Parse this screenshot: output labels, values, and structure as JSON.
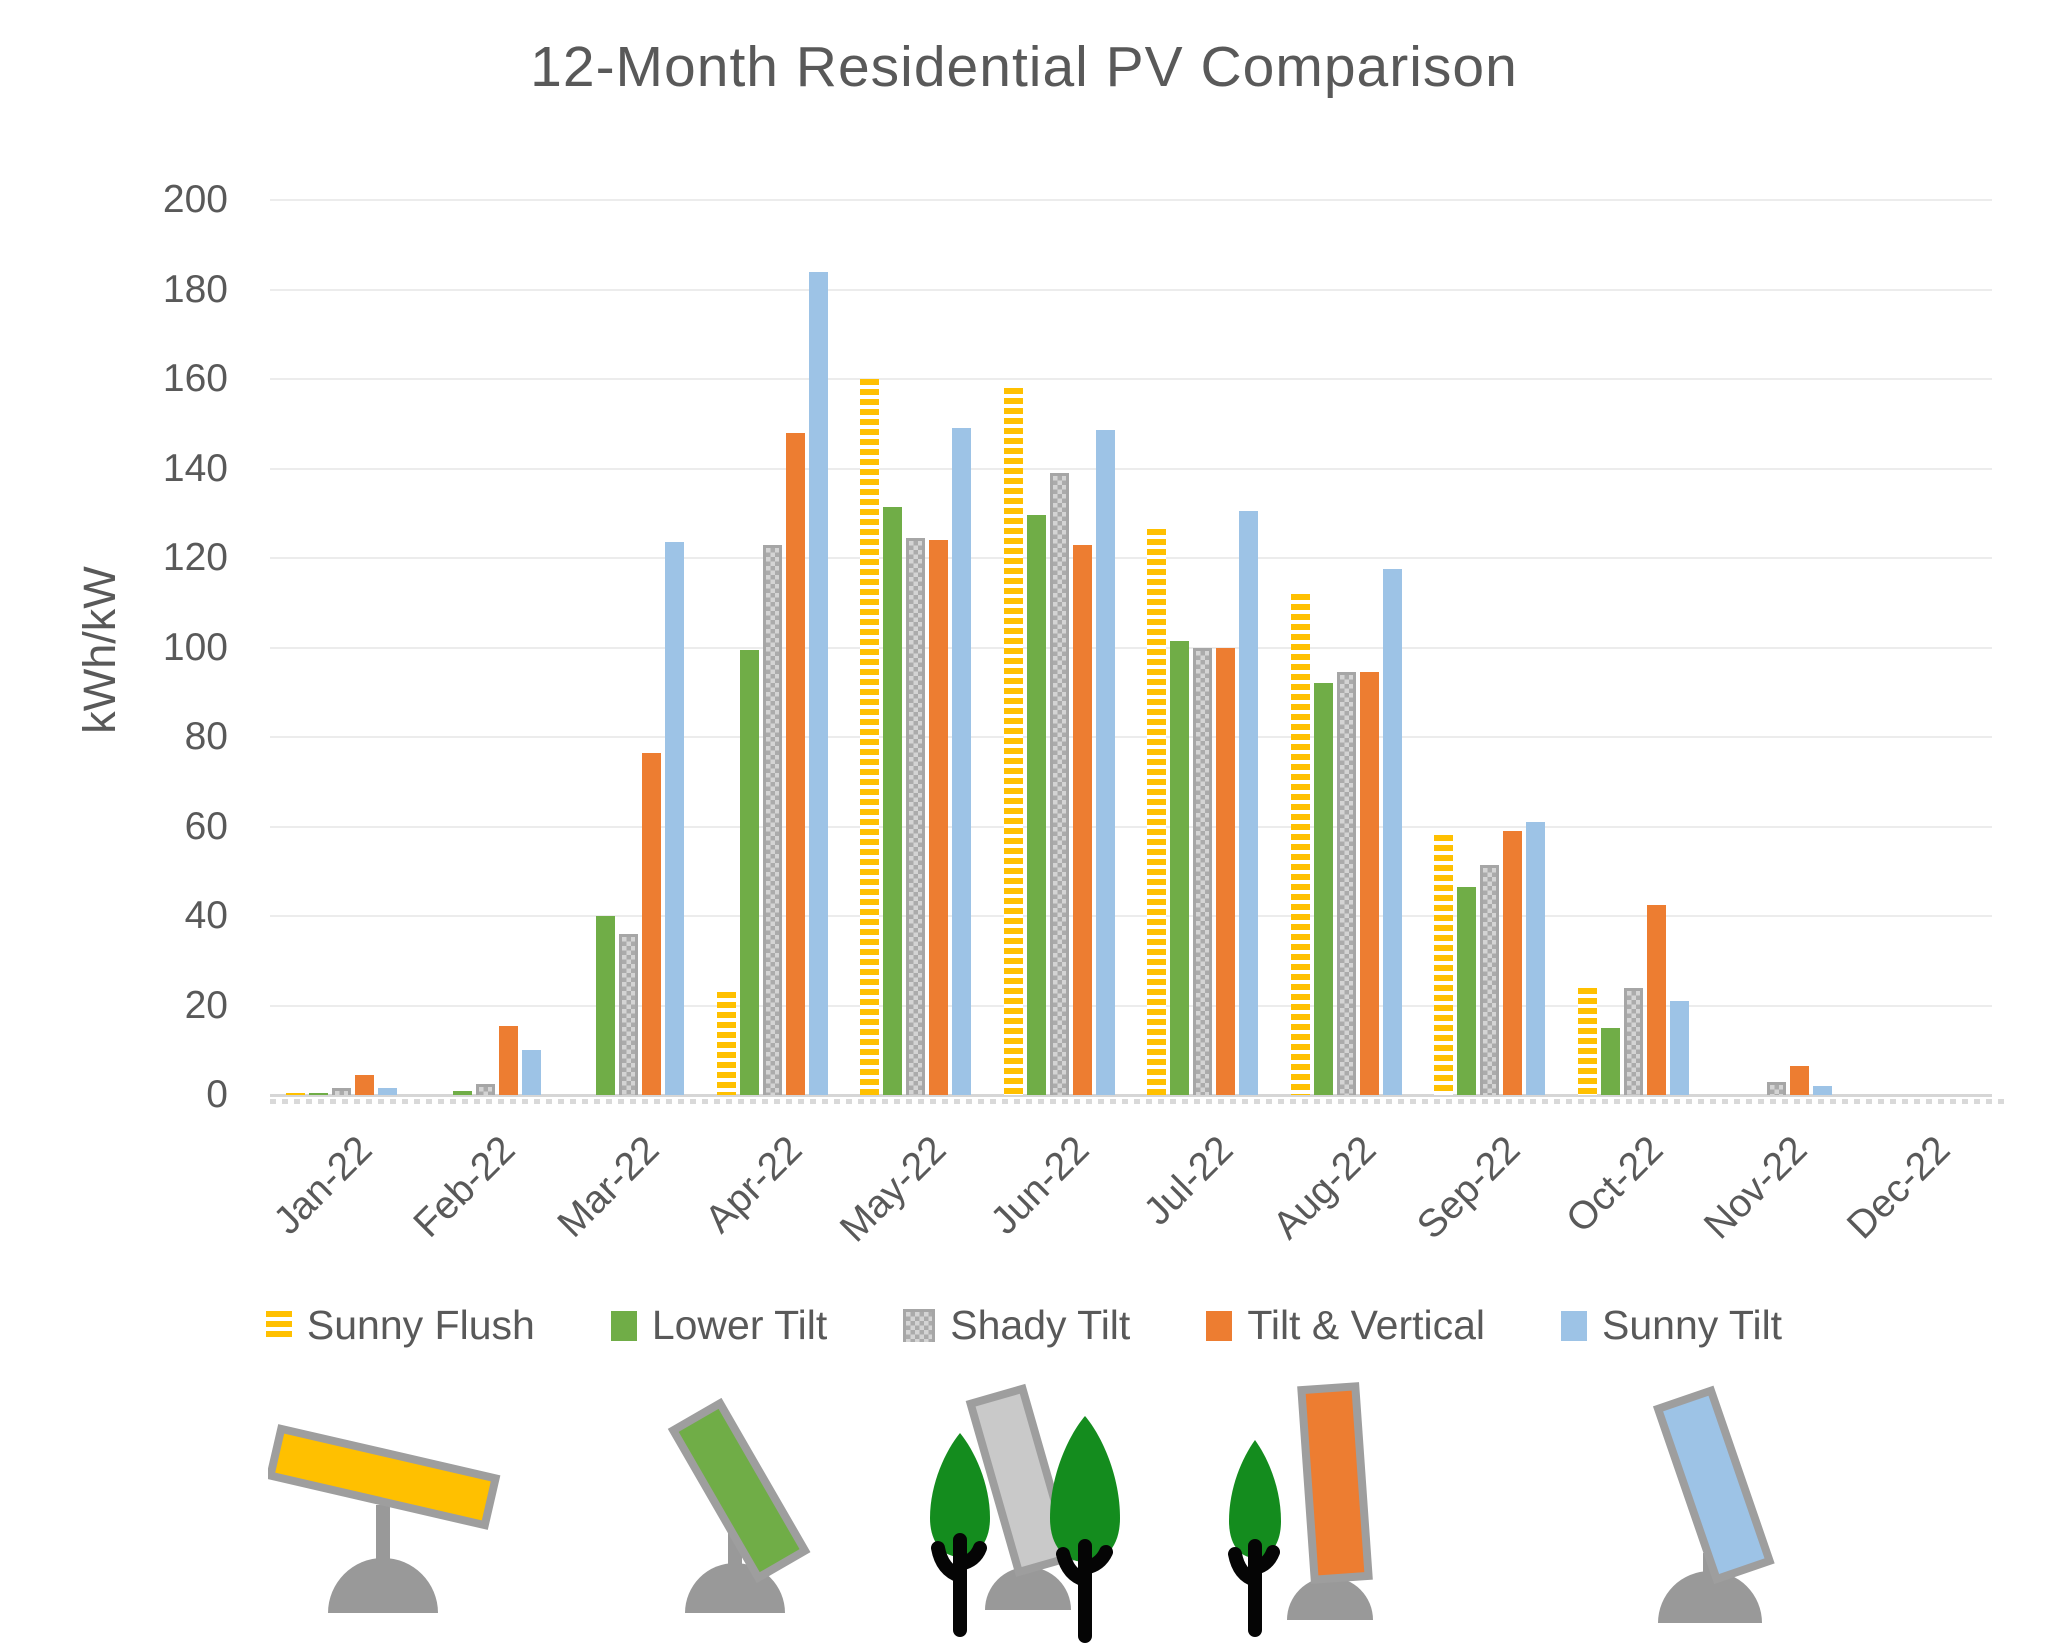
{
  "title": "12-Month Residential PV Comparison",
  "chart_data": {
    "type": "bar",
    "title": "12-Month Residential PV Comparison",
    "xlabel": "",
    "ylabel": "kWh/kW",
    "ylim": [
      0,
      200
    ],
    "ytick_step": 20,
    "yticks": [
      0,
      20,
      40,
      60,
      80,
      100,
      120,
      140,
      160,
      180,
      200
    ],
    "grid": true,
    "legend_position": "bottom",
    "categories": [
      "Jan-22",
      "Feb-22",
      "Mar-22",
      "Apr-22",
      "May-22",
      "Jun-22",
      "Jul-22",
      "Aug-22",
      "Sep-22",
      "Oct-22",
      "Nov-22",
      "Dec-22"
    ],
    "series": [
      {
        "name": "Sunny Flush",
        "color": "#FFC000",
        "pattern": "horizontal-stripes",
        "values": [
          0.5,
          0,
          0,
          23,
          160,
          158,
          126.5,
          112,
          58,
          24,
          0,
          0
        ]
      },
      {
        "name": "Lower Tilt",
        "color": "#70AD47",
        "pattern": "solid",
        "values": [
          0.5,
          1,
          40,
          99.5,
          131.5,
          129.5,
          101.5,
          92,
          46.5,
          15,
          0,
          0
        ]
      },
      {
        "name": "Shady Tilt",
        "color": "#A6A6A6",
        "pattern": "checker",
        "values": [
          1.5,
          2.5,
          36,
          123,
          124.5,
          139,
          100,
          94.5,
          51.5,
          24,
          3,
          0
        ]
      },
      {
        "name": "Tilt & Vertical",
        "color": "#ED7D31",
        "pattern": "solid",
        "values": [
          4.5,
          15.5,
          76.5,
          148,
          124,
          123,
          100,
          94.5,
          59,
          42.5,
          6.5,
          0
        ]
      },
      {
        "name": "Sunny Tilt",
        "color": "#9DC3E6",
        "pattern": "solid",
        "values": [
          1.5,
          10,
          123.5,
          184,
          149,
          148.5,
          130.5,
          117.5,
          61,
          21,
          2,
          0
        ]
      }
    ]
  },
  "icons": {
    "tree_color": "#148C1E",
    "pole_color": "#999999",
    "frame_color": "#9E9E9E",
    "items": [
      {
        "name": "sunny-flush-panel-icon",
        "panel_color": "#FFC000",
        "trees": 0
      },
      {
        "name": "lower-tilt-panel-icon",
        "panel_color": "#70AD47",
        "trees": 0
      },
      {
        "name": "shady-tilt-panel-icon",
        "panel_color": "#C9C9C9",
        "trees": 2
      },
      {
        "name": "tilt-vertical-panel-icon",
        "panel_color": "#ED7D31",
        "trees": 1
      },
      {
        "name": "sunny-tilt-panel-icon",
        "panel_color": "#9DC3E6",
        "trees": 0
      }
    ]
  }
}
